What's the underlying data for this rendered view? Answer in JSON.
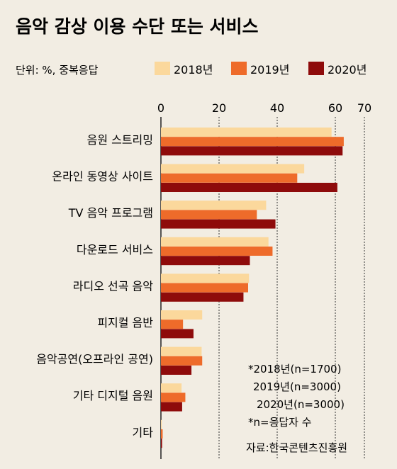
{
  "chart_data": {
    "type": "bar",
    "orientation": "horizontal",
    "title": "음악 감상 이용 수단 또는 서비스",
    "unit_label": "단위: %, 중복응답",
    "categories": [
      "음원 스트리밍",
      "온라인 동영상 사이트",
      "TV 음악 프로그램",
      "다운로드 서비스",
      "라디오 선곡 음악",
      "피지컬  음반",
      "음악공연(오프라인 공연)",
      "기타 디지털 음원",
      "기타"
    ],
    "series": [
      {
        "name": "2018년",
        "color": "#fbd89c",
        "values": [
          58.7,
          49.3,
          36.2,
          37.0,
          30.3,
          14.2,
          14.0,
          7.1,
          0.3
        ]
      },
      {
        "name": "2019년",
        "color": "#ee6b2a",
        "values": [
          62.9,
          46.9,
          33.0,
          38.4,
          30.0,
          7.6,
          14.2,
          8.4,
          0.6
        ]
      },
      {
        "name": "2020년",
        "color": "#8e0b0b",
        "values": [
          62.5,
          60.7,
          39.4,
          30.6,
          28.4,
          11.2,
          10.5,
          7.3,
          0.4
        ]
      }
    ],
    "xticks": [
      0,
      20,
      40,
      60,
      70
    ],
    "xlim": [
      0,
      70
    ],
    "grid": true,
    "legend": "top",
    "notes": [
      "*2018년(n=1700)",
      "2019년(n=3000)",
      "2020년(n=3000)",
      "*n=응답자 수"
    ],
    "source": "자료:한국콘텐츠진흥원"
  }
}
